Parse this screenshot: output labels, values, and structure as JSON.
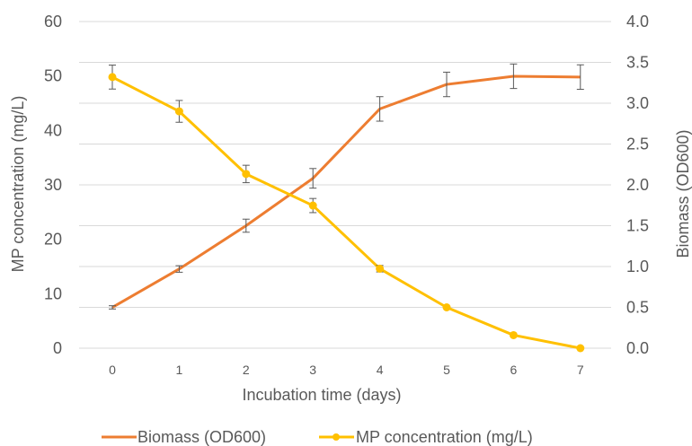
{
  "chart_data": {
    "type": "line",
    "title": "",
    "x": [
      0,
      1,
      2,
      3,
      4,
      5,
      6,
      7
    ],
    "x_tick_labels": [
      "0",
      "1",
      "2",
      "3",
      "4",
      "5",
      "6",
      "7"
    ],
    "xlabel": "Incubation time (days)",
    "ylabel_left": "MP concentration (mg/L)",
    "ylabel_right": "Biomass (OD600)",
    "ylim_left": [
      0,
      60
    ],
    "ylim_right": [
      0,
      4.0
    ],
    "y_left_ticks": [
      "0",
      "10",
      "20",
      "30",
      "40",
      "50",
      "60"
    ],
    "y_right_ticks": [
      "0.0",
      "0.5",
      "1.0",
      "1.5",
      "2.0",
      "2.5",
      "3.0",
      "3.5",
      "4.0"
    ],
    "grid": true,
    "legend_position": "bottom",
    "series": [
      {
        "name": "Biomass (OD600)",
        "axis": "right",
        "color": "#ED7D31",
        "marker": "none",
        "values": [
          0.5,
          0.97,
          1.5,
          2.08,
          2.93,
          3.23,
          3.33,
          3.32
        ],
        "error": [
          0.02,
          0.04,
          0.08,
          0.12,
          0.15,
          0.15,
          0.15,
          0.15
        ]
      },
      {
        "name": "MP concentration (mg/L)",
        "axis": "left",
        "color": "#FFC000",
        "marker": "circle",
        "values": [
          49.8,
          43.5,
          32.0,
          26.2,
          14.6,
          7.5,
          2.4,
          0.0
        ],
        "error": [
          2.2,
          2.0,
          1.6,
          1.3,
          0.6,
          0.0,
          0.0,
          0.0
        ]
      }
    ]
  }
}
